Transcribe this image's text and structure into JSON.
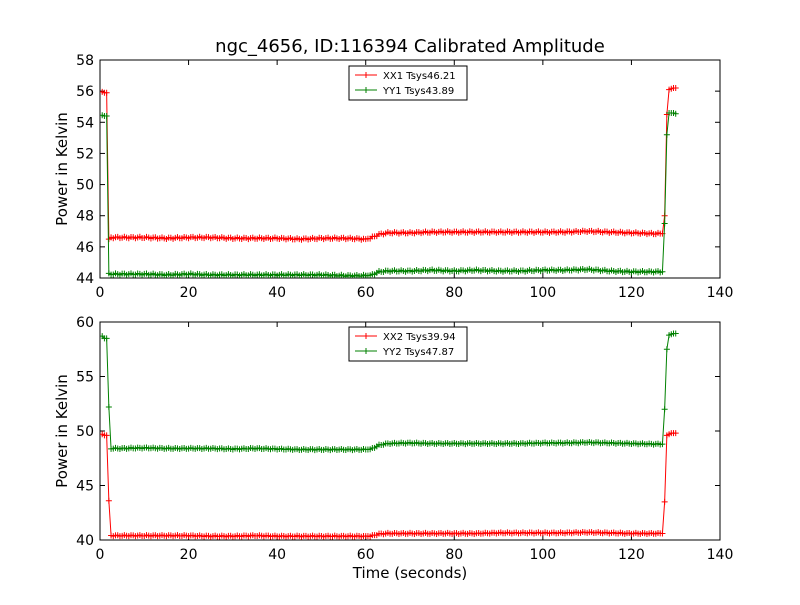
{
  "figure": {
    "title": "ngc_4656, ID:116394 Calibrated Amplitude",
    "xlabel": "Time (seconds)"
  },
  "chart_data": [
    {
      "type": "line",
      "title": "ngc_4656, ID:116394 Calibrated Amplitude",
      "xlabel": "",
      "ylabel": "Power in Kelvin",
      "xlim": [
        0,
        140
      ],
      "ylim": [
        44,
        58
      ],
      "xticks": [
        "0",
        "20",
        "40",
        "60",
        "80",
        "100",
        "120",
        "140"
      ],
      "yticks": [
        "44",
        "46",
        "48",
        "50",
        "52",
        "54",
        "56",
        "58"
      ],
      "grid": false,
      "legend": "top-center",
      "series": [
        {
          "name": "XX1 Tsys46.21",
          "color": "#ff0000",
          "marker": "+",
          "points": [
            [
              0.5,
              55.95
            ],
            [
              1,
              55.9
            ],
            [
              1.5,
              55.9
            ],
            [
              2,
              46.5
            ],
            [
              2.5,
              46.6
            ],
            [
              5,
              46.6
            ],
            [
              10,
              46.6
            ],
            [
              15,
              46.55
            ],
            [
              20,
              46.6
            ],
            [
              25,
              46.6
            ],
            [
              30,
              46.55
            ],
            [
              35,
              46.55
            ],
            [
              40,
              46.55
            ],
            [
              45,
              46.5
            ],
            [
              50,
              46.55
            ],
            [
              55,
              46.55
            ],
            [
              60,
              46.5
            ],
            [
              61,
              46.55
            ],
            [
              63,
              46.8
            ],
            [
              65,
              46.9
            ],
            [
              70,
              46.9
            ],
            [
              75,
              46.95
            ],
            [
              80,
              46.95
            ],
            [
              85,
              46.95
            ],
            [
              90,
              46.95
            ],
            [
              95,
              46.95
            ],
            [
              100,
              46.95
            ],
            [
              105,
              46.95
            ],
            [
              110,
              47.0
            ],
            [
              115,
              46.95
            ],
            [
              120,
              46.9
            ],
            [
              125,
              46.85
            ],
            [
              127,
              46.85
            ],
            [
              127.5,
              48.0
            ],
            [
              128,
              54.5
            ],
            [
              128.5,
              56.1
            ],
            [
              129.5,
              56.2
            ],
            [
              130,
              56.2
            ]
          ]
        },
        {
          "name": "YY1 Tsys43.89",
          "color": "#008000",
          "marker": "+",
          "points": [
            [
              0.5,
              54.45
            ],
            [
              1,
              54.4
            ],
            [
              1.5,
              54.4
            ],
            [
              2,
              44.3
            ],
            [
              2.5,
              44.25
            ],
            [
              5,
              44.25
            ],
            [
              10,
              44.25
            ],
            [
              15,
              44.2
            ],
            [
              20,
              44.25
            ],
            [
              25,
              44.2
            ],
            [
              30,
              44.2
            ],
            [
              35,
              44.2
            ],
            [
              40,
              44.2
            ],
            [
              45,
              44.2
            ],
            [
              50,
              44.2
            ],
            [
              55,
              44.15
            ],
            [
              60,
              44.15
            ],
            [
              61,
              44.15
            ],
            [
              63,
              44.4
            ],
            [
              65,
              44.45
            ],
            [
              70,
              44.45
            ],
            [
              75,
              44.5
            ],
            [
              80,
              44.45
            ],
            [
              85,
              44.5
            ],
            [
              90,
              44.45
            ],
            [
              95,
              44.45
            ],
            [
              100,
              44.5
            ],
            [
              105,
              44.5
            ],
            [
              110,
              44.55
            ],
            [
              115,
              44.45
            ],
            [
              120,
              44.4
            ],
            [
              125,
              44.4
            ],
            [
              127,
              44.4
            ],
            [
              127.5,
              47.5
            ],
            [
              128,
              53.2
            ],
            [
              128.5,
              54.6
            ],
            [
              129.5,
              54.6
            ],
            [
              130,
              54.55
            ]
          ]
        }
      ]
    },
    {
      "type": "line",
      "title": "",
      "xlabel": "Time (seconds)",
      "ylabel": "Power in Kelvin",
      "xlim": [
        0,
        140
      ],
      "ylim": [
        40,
        60
      ],
      "xticks": [
        "0",
        "20",
        "40",
        "60",
        "80",
        "100",
        "120",
        "140"
      ],
      "yticks": [
        "40",
        "45",
        "50",
        "55",
        "60"
      ],
      "grid": false,
      "legend": "top-center",
      "series": [
        {
          "name": "XX2 Tsys39.94",
          "color": "#ff0000",
          "marker": "+",
          "points": [
            [
              0.5,
              49.7
            ],
            [
              1,
              49.6
            ],
            [
              1.5,
              49.6
            ],
            [
              2,
              43.6
            ],
            [
              2.5,
              40.4
            ],
            [
              5,
              40.4
            ],
            [
              10,
              40.4
            ],
            [
              15,
              40.4
            ],
            [
              20,
              40.4
            ],
            [
              25,
              40.35
            ],
            [
              30,
              40.35
            ],
            [
              35,
              40.4
            ],
            [
              40,
              40.35
            ],
            [
              45,
              40.35
            ],
            [
              50,
              40.35
            ],
            [
              55,
              40.35
            ],
            [
              60,
              40.35
            ],
            [
              61,
              40.35
            ],
            [
              63,
              40.55
            ],
            [
              65,
              40.6
            ],
            [
              70,
              40.6
            ],
            [
              75,
              40.6
            ],
            [
              80,
              40.6
            ],
            [
              85,
              40.6
            ],
            [
              90,
              40.65
            ],
            [
              95,
              40.65
            ],
            [
              100,
              40.65
            ],
            [
              105,
              40.65
            ],
            [
              110,
              40.7
            ],
            [
              115,
              40.65
            ],
            [
              120,
              40.6
            ],
            [
              125,
              40.6
            ],
            [
              127,
              40.6
            ],
            [
              127.5,
              43.5
            ],
            [
              128,
              49.6
            ],
            [
              129,
              49.8
            ],
            [
              130,
              49.8
            ]
          ]
        },
        {
          "name": "YY2 Tsys47.87",
          "color": "#008000",
          "marker": "+",
          "points": [
            [
              0.5,
              58.7
            ],
            [
              1,
              58.5
            ],
            [
              1.5,
              58.5
            ],
            [
              2,
              52.2
            ],
            [
              2.5,
              48.4
            ],
            [
              5,
              48.4
            ],
            [
              10,
              48.45
            ],
            [
              15,
              48.4
            ],
            [
              20,
              48.4
            ],
            [
              25,
              48.4
            ],
            [
              30,
              48.35
            ],
            [
              35,
              48.4
            ],
            [
              40,
              48.35
            ],
            [
              45,
              48.3
            ],
            [
              50,
              48.3
            ],
            [
              55,
              48.3
            ],
            [
              60,
              48.3
            ],
            [
              61,
              48.3
            ],
            [
              63,
              48.7
            ],
            [
              65,
              48.85
            ],
            [
              70,
              48.9
            ],
            [
              75,
              48.85
            ],
            [
              80,
              48.85
            ],
            [
              85,
              48.85
            ],
            [
              90,
              48.85
            ],
            [
              95,
              48.85
            ],
            [
              100,
              48.9
            ],
            [
              105,
              48.9
            ],
            [
              110,
              48.95
            ],
            [
              115,
              48.9
            ],
            [
              120,
              48.85
            ],
            [
              125,
              48.8
            ],
            [
              127,
              48.8
            ],
            [
              127.5,
              52.0
            ],
            [
              128,
              57.5
            ],
            [
              128.5,
              58.8
            ],
            [
              129.5,
              58.95
            ],
            [
              130,
              58.95
            ]
          ]
        }
      ]
    }
  ]
}
